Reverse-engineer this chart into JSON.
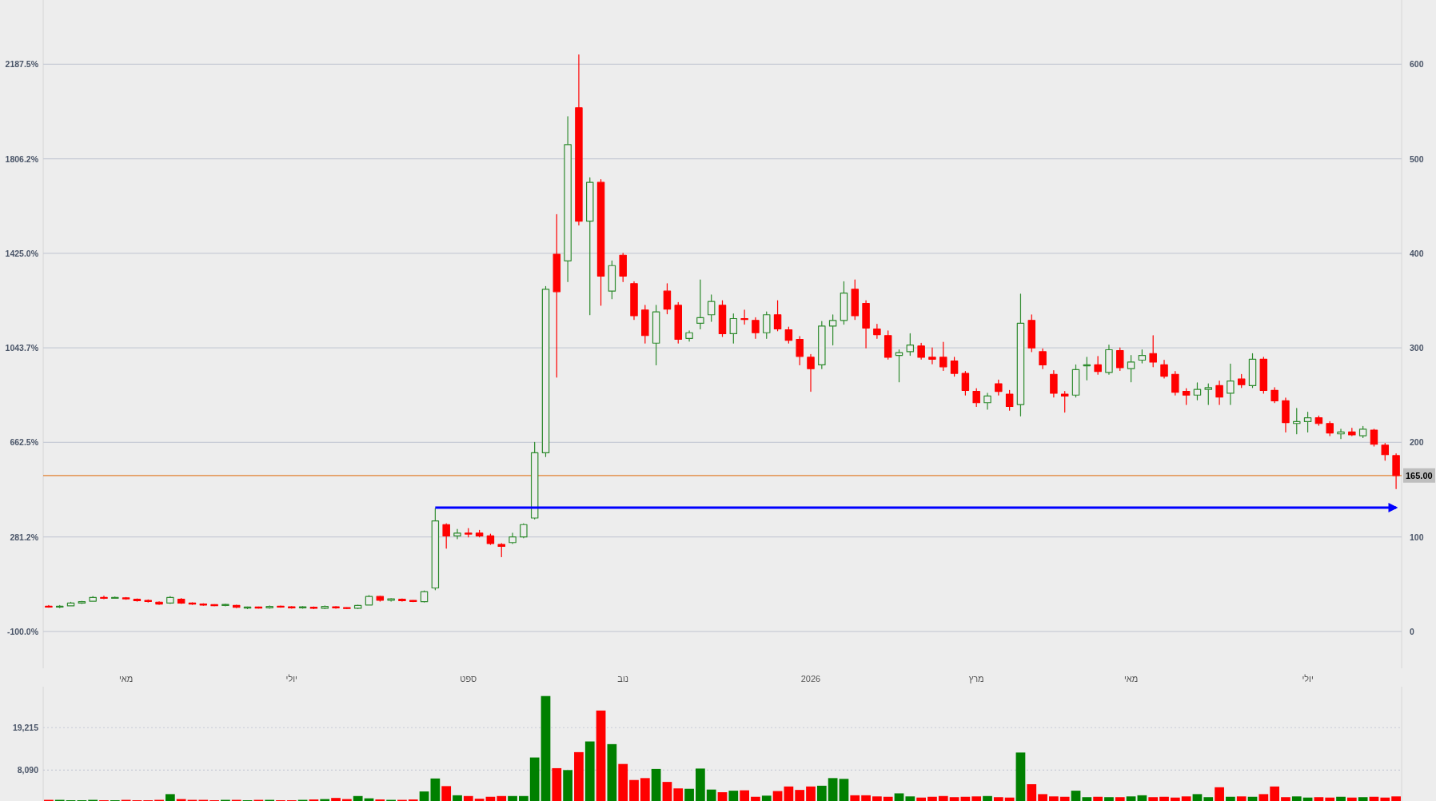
{
  "chart_data": [
    {
      "type": "candlestick",
      "categories": [
        null,
        null,
        null,
        null,
        null,
        null,
        null,
        "מאי",
        null,
        null,
        null,
        null,
        null,
        null,
        null,
        null,
        null,
        null,
        null,
        null,
        null,
        null,
        "יולי",
        null,
        null,
        null,
        null,
        null,
        null,
        null,
        null,
        null,
        null,
        null,
        null,
        null,
        null,
        null,
        "ספט",
        null,
        null,
        null,
        null,
        null,
        null,
        null,
        null,
        null,
        null,
        null,
        null,
        null,
        "נוב",
        null,
        null,
        null,
        null,
        null,
        null,
        null,
        null,
        null,
        null,
        null,
        null,
        null,
        null,
        null,
        null,
        "2026",
        null,
        null,
        null,
        null,
        null,
        null,
        null,
        null,
        null,
        null,
        null,
        null,
        null,
        null,
        "מרץ",
        null,
        null,
        null,
        null,
        null,
        null,
        null,
        null,
        null,
        null,
        null,
        null,
        null,
        "מאי",
        null,
        null,
        null,
        null,
        null,
        null,
        null,
        null,
        null,
        null,
        null,
        null,
        null,
        null,
        null,
        "יולי",
        null,
        null,
        null,
        null,
        null,
        null,
        null,
        null
      ],
      "ylim": [
        -248.7,
        2446.7
      ],
      "yticks": [
        {
          "value": -100,
          "label": "-100.0%"
        },
        {
          "value": 281.25,
          "label": "281.2%"
        },
        {
          "value": 662.5,
          "label": "662.5%"
        },
        {
          "value": 1043.75,
          "label": "1043.7%"
        },
        {
          "value": 1425,
          "label": "1425.0%"
        },
        {
          "value": 1806.25,
          "label": "1806.2%"
        },
        {
          "value": 2187.5,
          "label": "2187.5%"
        }
      ],
      "y2lim": [
        -39,
        668
      ],
      "y2ticks": [
        {
          "value": 0,
          "label": "0"
        },
        {
          "value": 100,
          "label": "100"
        },
        {
          "value": 200,
          "label": "200"
        },
        {
          "value": 300,
          "label": "300"
        },
        {
          "value": 400,
          "label": "400"
        },
        {
          "value": 500,
          "label": "500"
        },
        {
          "value": 600,
          "label": "600"
        }
      ],
      "grid": "y",
      "ref_lines": [
        {
          "axis": "y2",
          "value": 165,
          "label": "165.00",
          "color": "#e0802f"
        }
      ],
      "series": [
        {
          "type": "candlestick",
          "axis": "y2",
          "ohlc": [
            [
              26.5,
              27.5,
              25.5,
              26
            ],
            [
              26,
              27.5,
              25,
              26.5
            ],
            [
              27,
              31,
              27,
              30
            ],
            [
              30,
              32,
              29.5,
              31.5
            ],
            [
              32,
              37,
              32,
              36
            ],
            [
              36,
              37.5,
              34.5,
              35
            ],
            [
              35.5,
              36.5,
              35,
              35.5
            ],
            [
              35.5,
              36,
              34,
              34.5
            ],
            [
              34,
              34.5,
              32,
              32.5
            ],
            [
              32.5,
              33.5,
              31,
              32
            ],
            [
              31,
              31.5,
              28.5,
              29
            ],
            [
              30,
              37,
              29.5,
              36
            ],
            [
              34,
              35,
              29.5,
              30
            ],
            [
              30,
              30.5,
              28.5,
              29
            ],
            [
              29,
              29.5,
              27.5,
              28
            ],
            [
              28,
              28.5,
              27,
              27.5
            ],
            [
              27.5,
              29,
              27,
              28.5
            ],
            [
              27.5,
              28,
              25,
              25.5
            ],
            [
              25,
              26,
              24,
              25.5
            ],
            [
              25.5,
              26,
              24.5,
              25
            ],
            [
              25,
              27,
              24.5,
              26.5
            ],
            [
              26.5,
              27,
              25.5,
              26
            ],
            [
              26,
              26.5,
              24.5,
              25
            ],
            [
              25,
              26.5,
              24.5,
              26
            ],
            [
              25.5,
              26,
              24,
              24.5
            ],
            [
              24.5,
              27,
              24,
              26.5
            ],
            [
              26,
              26.5,
              24.5,
              25
            ],
            [
              25,
              25.5,
              24,
              24.5
            ],
            [
              24.5,
              28,
              24,
              27.5
            ],
            [
              28,
              38,
              28,
              37
            ],
            [
              37,
              37.5,
              32,
              33
            ],
            [
              33,
              35,
              32,
              34.5
            ],
            [
              34,
              34.5,
              32,
              32.5
            ],
            [
              32.5,
              33,
              31.5,
              32
            ],
            [
              31.5,
              43,
              31,
              42
            ],
            [
              46,
              130,
              44,
              117
            ],
            [
              113,
              114,
              88,
              101
            ],
            [
              101,
              108,
              98,
              104
            ],
            [
              104,
              109,
              100,
              103
            ],
            [
              104,
              107,
              100,
              101
            ],
            [
              101,
              103,
              92,
              93
            ],
            [
              92,
              93,
              79,
              90
            ],
            [
              94,
              104,
              93,
              100
            ],
            [
              100,
              114,
              99,
              113
            ],
            [
              120,
              200,
              119,
              189
            ],
            [
              189,
              365,
              185,
              362
            ],
            [
              399,
              441,
              269,
              359.5
            ],
            [
              392,
              544.6,
              370,
              515
            ],
            [
              554,
              610,
              430,
              434
            ],
            [
              434,
              480,
              335,
              475
            ],
            [
              475,
              478,
              345,
              376
            ],
            [
              360,
              392,
              352,
              387
            ],
            [
              398,
              400,
              370,
              376
            ],
            [
              368,
              370,
              330,
              334
            ],
            [
              340,
              345,
              305,
              313
            ],
            [
              305,
              345,
              282,
              338
            ],
            [
              360,
              368,
              336,
              341
            ],
            [
              345,
              348,
              305,
              309
            ],
            [
              310,
              318,
              307,
              316
            ],
            [
              326,
              372,
              320,
              332
            ],
            [
              335,
              356,
              328,
              349
            ],
            [
              345,
              350,
              312,
              315
            ],
            [
              315,
              336,
              305,
              331
            ],
            [
              331,
              340,
              325,
              330
            ],
            [
              329,
              332,
              310,
              316
            ],
            [
              316,
              338,
              310,
              335
            ],
            [
              335,
              350,
              318,
              320
            ],
            [
              319,
              322,
              305,
              308
            ],
            [
              309,
              312,
              282,
              291
            ],
            [
              290,
              293,
              254,
              278
            ],
            [
              282,
              328,
              278,
              323
            ],
            [
              323,
              335,
              303,
              329
            ],
            [
              329,
              370,
              325,
              358
            ],
            [
              362,
              372,
              330,
              334
            ],
            [
              347,
              350,
              300,
              321
            ],
            [
              320,
              325,
              310,
              314
            ],
            [
              313,
              318,
              288,
              290
            ],
            [
              292,
              298,
              264,
              295
            ],
            [
              296,
              315,
              292,
              303
            ],
            [
              302,
              305,
              288,
              290
            ],
            [
              290,
              300,
              283,
              288
            ],
            [
              290,
              306,
              276,
              280
            ],
            [
              286,
              290,
              270,
              273
            ],
            [
              273,
              275,
              250,
              255
            ],
            [
              254,
              257,
              238,
              242
            ],
            [
              242,
              252,
              235,
              249
            ],
            [
              262,
              266,
              250,
              254
            ],
            [
              251,
              255,
              234,
              238
            ],
            [
              240,
              357,
              228,
              326
            ],
            [
              329,
              335,
              296,
              300
            ],
            [
              296,
              299,
              278,
              282
            ],
            [
              272,
              276,
              248,
              252
            ],
            [
              251,
              254,
              232,
              249
            ],
            [
              250,
              282,
              248,
              277
            ],
            [
              281,
              290,
              266,
              282
            ],
            [
              282,
              291,
              272,
              275
            ],
            [
              274,
              303,
              272,
              298
            ],
            [
              297,
              300,
              276,
              279
            ],
            [
              278,
              292,
              264,
              285
            ],
            [
              287,
              298,
              284,
              292
            ],
            [
              294,
              313,
              280,
              285
            ],
            [
              282,
              287,
              268,
              270
            ],
            [
              272,
              275,
              250,
              253
            ],
            [
              254,
              257,
              240,
              250
            ],
            [
              250,
              263,
              245,
              256
            ],
            [
              256,
              262,
              240,
              258
            ],
            [
              260,
              265,
              240,
              248
            ],
            [
              252,
              283,
              240,
              265
            ],
            [
              267,
              272,
              258,
              261
            ],
            [
              260,
              294,
              258,
              288
            ],
            [
              288,
              290,
              252,
              255
            ],
            [
              255,
              258,
              242,
              244
            ],
            [
              244,
              247,
              211,
              221
            ],
            [
              220,
              236,
              209,
              222
            ],
            [
              222,
              232,
              211,
              226
            ],
            [
              226,
              228,
              218,
              220
            ],
            [
              220,
              222,
              207,
              210
            ],
            [
              209,
              214,
              204,
              211
            ],
            [
              211,
              215,
              207,
              208
            ],
            [
              207,
              217,
              205,
              214
            ],
            [
              213,
              214,
              196,
              198
            ],
            [
              197,
              199,
              181,
              187
            ],
            [
              186,
              188,
              151,
              165
            ]
          ]
        },
        {
          "type": "line",
          "axis": "y2",
          "color": "#0000ff",
          "values": [
            null,
            null,
            null,
            null,
            null,
            null,
            null,
            null,
            null,
            null,
            null,
            null,
            null,
            null,
            null,
            null,
            null,
            null,
            null,
            null,
            null,
            null,
            null,
            null,
            null,
            null,
            null,
            null,
            null,
            null,
            null,
            null,
            null,
            null,
            null,
            131,
            131,
            131,
            131,
            131,
            131,
            131,
            131,
            131,
            131,
            131,
            131,
            131,
            131,
            131,
            131,
            131,
            131,
            131,
            131,
            131,
            131,
            131,
            131,
            131,
            131,
            131,
            131,
            131,
            131,
            131,
            131,
            131,
            131,
            131,
            131,
            131,
            131,
            131,
            131,
            131,
            131,
            131,
            131,
            131,
            131,
            131,
            131,
            131,
            131,
            131,
            131,
            131,
            131,
            131,
            131,
            131,
            131,
            131,
            131,
            131,
            131,
            131,
            131,
            131,
            131,
            131,
            131,
            131,
            131,
            131,
            131,
            131,
            131,
            131,
            131,
            131,
            131,
            131,
            131,
            131,
            131,
            131,
            131,
            131,
            131,
            131,
            131
          ]
        }
      ]
    },
    {
      "type": "bar",
      "ylim": [
        0,
        29950
      ],
      "yticks": [
        {
          "value": 8090,
          "label": "8,090"
        },
        {
          "value": 19215,
          "label": "19,215"
        }
      ],
      "grid": "y",
      "tick_labels": "y",
      "categories": [
        null,
        null,
        null,
        null,
        null,
        null,
        null,
        null,
        null,
        null,
        null,
        null,
        null,
        null,
        null,
        null,
        null,
        null,
        null,
        null,
        null,
        null,
        null,
        null,
        null,
        null,
        null,
        null,
        null,
        null,
        null,
        null,
        null,
        null,
        null,
        null,
        null,
        null,
        null,
        null,
        null,
        null,
        null,
        null,
        null,
        null,
        null,
        null,
        null,
        null,
        null,
        null,
        null,
        null,
        null,
        null,
        null,
        null,
        null,
        null,
        null,
        null,
        null,
        null,
        null,
        null,
        null,
        null,
        null,
        null,
        null,
        null,
        null,
        null,
        null,
        null,
        null,
        null,
        null,
        null,
        null,
        null,
        null,
        null,
        null,
        null,
        null,
        null,
        null,
        null,
        null,
        null,
        null,
        null,
        null,
        null,
        null,
        null,
        null,
        null,
        null,
        null,
        null,
        null,
        null,
        null,
        null,
        null,
        null,
        null,
        null,
        null,
        null,
        null,
        null,
        null,
        null,
        null,
        null,
        null,
        null,
        null,
        null
      ],
      "values": [
        300,
        300,
        200,
        200,
        300,
        200,
        200,
        300,
        200,
        200,
        300,
        1800,
        500,
        300,
        300,
        200,
        300,
        300,
        200,
        300,
        300,
        200,
        200,
        300,
        400,
        500,
        800,
        500,
        1300,
        700,
        400,
        300,
        300,
        400,
        2500,
        5900,
        3900,
        1500,
        1300,
        600,
        1100,
        1300,
        1300,
        1300,
        11400,
        27500,
        8600,
        8100,
        12800,
        15600,
        23700,
        14900,
        9700,
        5500,
        6000,
        8400,
        5000,
        3300,
        3200,
        8500,
        3000,
        2300,
        2700,
        2800,
        1100,
        1400,
        2600,
        3800,
        2900,
        3800,
        4000,
        6000,
        5800,
        1500,
        1500,
        1200,
        1100,
        2000,
        1200,
        900,
        1100,
        1300,
        1000,
        1100,
        1200,
        1300,
        1000,
        900,
        12700,
        4400,
        1800,
        1200,
        1100,
        2700,
        1000,
        1100,
        1000,
        1000,
        1200,
        1500,
        1000,
        1100,
        900,
        1200,
        1800,
        1000,
        3600,
        1100,
        1200,
        1100,
        1800,
        3800,
        1000,
        1200,
        900,
        1000,
        900,
        1100,
        900,
        1000,
        1100,
        900,
        1200
      ],
      "colors": [
        "#ff0000",
        "#008000",
        "#008000",
        "#008000",
        "#008000",
        "#ff0000",
        "#008000",
        "#ff0000",
        "#ff0000",
        "#ff0000",
        "#ff0000",
        "#008000",
        "#ff0000",
        "#ff0000",
        "#ff0000",
        "#ff0000",
        "#008000",
        "#ff0000",
        "#008000",
        "#ff0000",
        "#008000",
        "#ff0000",
        "#ff0000",
        "#008000",
        "#ff0000",
        "#008000",
        "#ff0000",
        "#ff0000",
        "#008000",
        "#008000",
        "#ff0000",
        "#008000",
        "#ff0000",
        "#ff0000",
        "#008000",
        "#008000",
        "#ff0000",
        "#008000",
        "#ff0000",
        "#ff0000",
        "#ff0000",
        "#ff0000",
        "#008000",
        "#008000",
        "#008000",
        "#008000",
        "#ff0000",
        "#008000",
        "#ff0000",
        "#008000",
        "#ff0000",
        "#008000",
        "#ff0000",
        "#ff0000",
        "#ff0000",
        "#008000",
        "#ff0000",
        "#ff0000",
        "#008000",
        "#008000",
        "#008000",
        "#ff0000",
        "#008000",
        "#ff0000",
        "#ff0000",
        "#008000",
        "#ff0000",
        "#ff0000",
        "#ff0000",
        "#ff0000",
        "#008000",
        "#008000",
        "#008000",
        "#ff0000",
        "#ff0000",
        "#ff0000",
        "#ff0000",
        "#008000",
        "#008000",
        "#ff0000",
        "#ff0000",
        "#ff0000",
        "#ff0000",
        "#ff0000",
        "#ff0000",
        "#008000",
        "#ff0000",
        "#ff0000",
        "#008000",
        "#ff0000",
        "#ff0000",
        "#ff0000",
        "#ff0000",
        "#008000",
        "#008000",
        "#ff0000",
        "#008000",
        "#ff0000",
        "#008000",
        "#008000",
        "#ff0000",
        "#ff0000",
        "#ff0000",
        "#ff0000",
        "#008000",
        "#008000",
        "#ff0000",
        "#008000",
        "#ff0000",
        "#008000",
        "#ff0000",
        "#ff0000",
        "#ff0000",
        "#008000",
        "#008000",
        "#ff0000",
        "#ff0000",
        "#008000",
        "#ff0000",
        "#008000",
        "#ff0000",
        "#ff0000",
        "#ff0000"
      ]
    }
  ]
}
